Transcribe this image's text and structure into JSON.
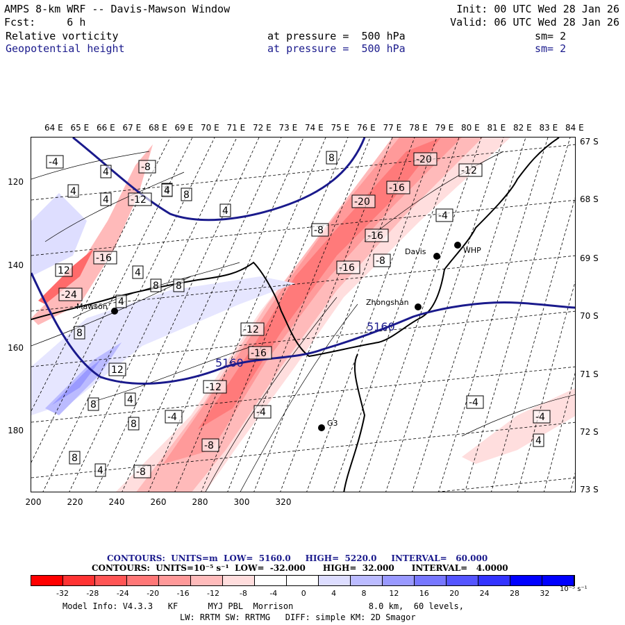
{
  "header": {
    "line1_left": "AMPS 8-km WRF -- Davis-Mawson Window",
    "line1_right": "Init: 00 UTC Wed 28 Jan 26",
    "line2_left": "Fcst:     6 h",
    "line2_right": "Valid: 06 UTC Wed 28 Jan 26",
    "field1_name": "Relative vorticity",
    "field1_level": "at pressure =  500 hPa",
    "field1_sm": "sm= 2",
    "field2_name": "Geopotential height",
    "field2_level": "at pressure =  500 hPa",
    "field2_sm": "sm= 2"
  },
  "top_lon_labels": [
    "64 E",
    "65 E",
    "66 E",
    "67 E",
    "68 E",
    "69 E",
    "70 E",
    "71 E",
    "72 E",
    "73 E",
    "74 E",
    "75 E",
    "76 E",
    "77 E",
    "78 E",
    "79 E",
    "80 E",
    "81 E",
    "82 E",
    "83 E",
    "84 E"
  ],
  "right_lat_labels": [
    "67 S",
    "68 S",
    "69 S",
    "70 S",
    "71 S",
    "72 S",
    "73 S"
  ],
  "left_y_labels": [
    "120",
    "140",
    "160",
    "180"
  ],
  "bottom_x_labels": [
    "200",
    "220",
    "240",
    "260",
    "280",
    "300",
    "320"
  ],
  "stations": [
    {
      "name": "Davis"
    },
    {
      "name": "WHP"
    },
    {
      "name": "Mawson"
    },
    {
      "name": "Zhongshan"
    },
    {
      "name": "G3"
    }
  ],
  "height_labels": [
    "5160",
    "5160"
  ],
  "vort_labels": [
    "-4",
    "8",
    "-8",
    "4",
    "-12",
    "4",
    "8",
    "8",
    "-20",
    "-12",
    "4",
    "4",
    "-16",
    "-20",
    "-4",
    "4",
    "-8",
    "-16",
    "-16",
    "-8",
    "12",
    "-16",
    "-24",
    "4",
    "8",
    "8",
    "4",
    "-12",
    "-16",
    "8",
    "12",
    "4",
    "-12",
    "8",
    "-4",
    "-4",
    "8",
    "-8",
    "8",
    "4",
    "-8",
    "-4",
    "-4",
    "4"
  ],
  "footer": {
    "line1": "CONTOURS:  UNITS=m  LOW=  5160.0     HIGH=  5220.0     INTERVAL=   60.000",
    "line2": "CONTOURS:  UNITS=10⁻⁵ s⁻¹  LOW=  -32.000      HIGH=  32.000      INTERVAL=   4.0000"
  },
  "colorbar": {
    "labels": [
      "-32",
      "-28",
      "-24",
      "-20",
      "-16",
      "-12",
      "-8",
      "-4",
      "0",
      "4",
      "8",
      "12",
      "16",
      "20",
      "24",
      "28",
      "32"
    ],
    "units": "10⁻⁵ s⁻¹",
    "colors": [
      "#ff0000",
      "#ff3333",
      "#ff5555",
      "#ff7777",
      "#ff9999",
      "#ffbbbb",
      "#ffdddd",
      "#ffffff",
      "#ffffff",
      "#ddddff",
      "#bbbbff",
      "#9999ff",
      "#7777ff",
      "#5555ff",
      "#3333ff",
      "#0000ff",
      "#0000ff"
    ]
  },
  "model_info": {
    "line1": "Model Info: V4.3.3   KF      MYJ PBL  Morrison               8.0 km,  60 levels,",
    "line2": "LW: RRTM SW: RRTMG   DIFF: simple KM: 2D Smagor"
  }
}
